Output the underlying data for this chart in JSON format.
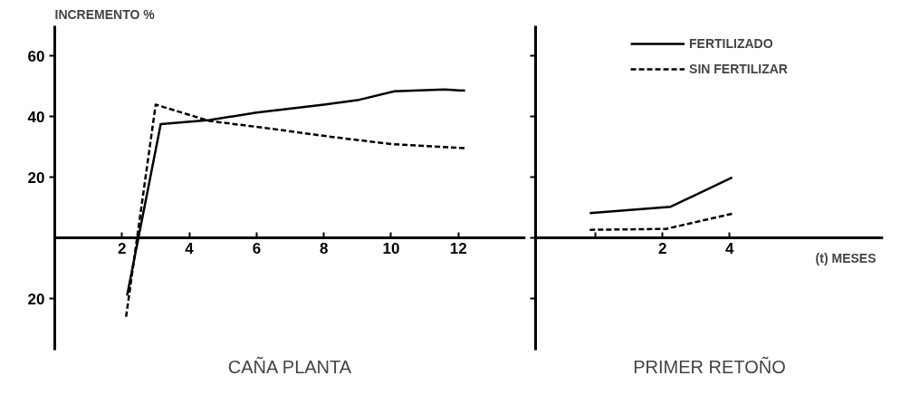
{
  "chart_data": [
    {
      "type": "line",
      "title": "CAÑA PLANTA",
      "ylabel": "INCREMENTO %",
      "xlim": [
        0,
        14
      ],
      "ylim": [
        -37,
        70
      ],
      "xticks": [
        2,
        4,
        6,
        8,
        10,
        12
      ],
      "yticks": [
        {
          "value": -20,
          "label": "20"
        },
        20,
        40,
        60
      ],
      "grid": false,
      "legend": false,
      "series": [
        {
          "color": "#000000",
          "line_style": "solid",
          "x": [
            2.15,
            3.15,
            4.6,
            6.0,
            8.0,
            9.05,
            10.1,
            11.6,
            12.2
          ],
          "values": [
            -19,
            37.6,
            38.9,
            41.4,
            44,
            45.6,
            48.4,
            49,
            48.6
          ]
        },
        {
          "color": "#000000",
          "line_style": "dashed",
          "x": [
            2.12,
            3.0,
            4.6,
            6.2,
            8.2,
            10.0,
            12.25
          ],
          "values": [
            -26,
            44,
            38.6,
            36.4,
            33.4,
            31,
            29.6
          ]
        }
      ]
    },
    {
      "type": "line",
      "title": "PRIMER RETOÑO",
      "xlabel": "(t) MESES",
      "xlim": [
        -1.8,
        8.6
      ],
      "ylim": [
        -37,
        70
      ],
      "xticks": [
        {
          "value": 0,
          "label": null
        },
        2,
        4
      ],
      "yticks": [
        {
          "value": -20,
          "label": null
        },
        {
          "value": 0,
          "label": null
        },
        {
          "value": 20,
          "label": null
        },
        {
          "value": 40,
          "label": null
        },
        {
          "value": 60,
          "label": null
        }
      ],
      "tick_labels": "x",
      "grid": false,
      "legend": "top",
      "series": [
        {
          "name": "FERTILIZADO",
          "color": "#000000",
          "line_style": "solid",
          "x": [
            -0.18,
            2.24,
            4.08
          ],
          "values": [
            8.2,
            10.3,
            20
          ]
        },
        {
          "name": "SIN FERTILIZAR",
          "color": "#000000",
          "line_style": "dashed",
          "x": [
            -0.18,
            2.1,
            4.08
          ],
          "values": [
            2.7,
            3,
            8
          ]
        }
      ]
    }
  ]
}
